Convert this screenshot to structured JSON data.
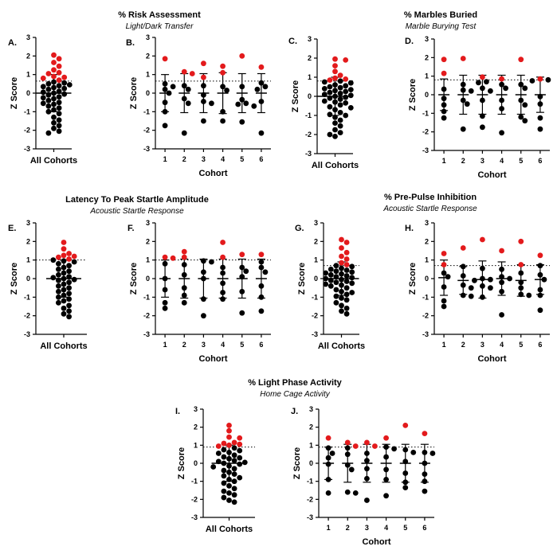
{
  "figure": {
    "sections": [
      {
        "id": "risk",
        "title": "% Risk Assessment",
        "subtitle": "Light/Dark Transfer"
      },
      {
        "id": "marbles",
        "title": "% Marbles Buried",
        "subtitle": "Marble Burying Test"
      },
      {
        "id": "latency",
        "title": "Latency To Peak Startle Amplitude",
        "subtitle": "Acoustic Startle Response"
      },
      {
        "id": "ppi",
        "title": "% Pre-Pulse Inhibition",
        "subtitle": "Acoustic Startle Response"
      },
      {
        "id": "light",
        "title": "% Light Phase Activity",
        "subtitle": "Home Cage Activity"
      }
    ],
    "colors": {
      "normal": "#000000",
      "highlight": "#e31a1c",
      "threshold_line": "#000000"
    }
  },
  "chart_data": [
    {
      "panel": "A.",
      "type": "scatter",
      "section": "risk",
      "ylabel": "Z Score",
      "xlabel": "All Cohorts",
      "ylim": [
        -3,
        3
      ],
      "yticks": [
        -3,
        -2,
        -1,
        0,
        1,
        2,
        3
      ],
      "mean": 0,
      "sd": 1,
      "threshold": 0.65,
      "points": [
        2.05,
        1.85,
        1.65,
        1.45,
        1.25,
        1.1,
        1.05,
        0.9,
        0.85,
        0.8,
        0.7,
        0.6,
        0.55,
        0.5,
        0.45,
        0.4,
        0.35,
        0.3,
        0.25,
        0.2,
        0.1,
        0.05,
        0,
        -0.05,
        -0.1,
        -0.2,
        -0.25,
        -0.3,
        -0.4,
        -0.5,
        -0.55,
        -0.6,
        -0.7,
        -0.8,
        -0.9,
        -1.0,
        -1.1,
        -1.3,
        -1.45,
        -1.6,
        -1.75,
        -1.9,
        -2.05,
        -2.15
      ]
    },
    {
      "panel": "B.",
      "type": "scatter",
      "section": "risk",
      "ylabel": "Z Score",
      "xlabel": "Cohort",
      "ylim": [
        -3,
        3
      ],
      "yticks": [
        -3,
        -2,
        -1,
        0,
        1,
        2,
        3
      ],
      "threshold": 0.65,
      "categories": [
        "1",
        "2",
        "3",
        "4",
        "5",
        "6"
      ],
      "groups": [
        {
          "mean": 0,
          "sd": 1,
          "points": [
            1.85,
            0.5,
            0.35,
            0.2,
            0,
            -0.5,
            -1.0,
            -1.75
          ]
        },
        {
          "mean": 0,
          "sd": 1.05,
          "points": [
            1.15,
            1.05,
            0.4,
            0.2,
            -0.3,
            -0.55,
            -2.15
          ]
        },
        {
          "mean": 0,
          "sd": 1.05,
          "points": [
            1.6,
            0.85,
            0.4,
            -0.1,
            -0.45,
            -0.55,
            -1.5
          ]
        },
        {
          "mean": 0,
          "sd": 1.1,
          "points": [
            1.45,
            1.1,
            0.35,
            0.15,
            -1.0,
            -1.5
          ]
        },
        {
          "mean": 0,
          "sd": 1.05,
          "points": [
            2.0,
            0.35,
            -0.35,
            -0.55,
            -0.6,
            -0.7,
            -1.55
          ]
        },
        {
          "mean": 0,
          "sd": 1.05,
          "points": [
            1.4,
            0.55,
            0.35,
            0.2,
            -0.45,
            -2.15
          ]
        }
      ]
    },
    {
      "panel": "C.",
      "type": "scatter",
      "section": "marbles",
      "ylabel": "Z Score",
      "xlabel": "All Cohorts",
      "ylim": [
        -3,
        3
      ],
      "yticks": [
        -3,
        -2,
        -1,
        0,
        1,
        2,
        3
      ],
      "mean": 0,
      "sd": 1,
      "threshold": 0.8,
      "points": [
        1.95,
        1.9,
        1.6,
        1.3,
        1.1,
        0.95,
        0.9,
        0.85,
        0.8,
        0.75,
        0.7,
        0.6,
        0.55,
        0.5,
        0.45,
        0.4,
        0.35,
        0.3,
        0.25,
        0.2,
        0.15,
        0.1,
        0.05,
        0,
        -0.05,
        -0.1,
        -0.15,
        -0.25,
        -0.3,
        -0.35,
        -0.45,
        -0.55,
        -0.6,
        -0.7,
        -0.85,
        -0.95,
        -1.0,
        -1.1,
        -1.25,
        -1.4,
        -1.55,
        -1.75,
        -1.9,
        -2.0,
        -2.1
      ]
    },
    {
      "panel": "D.",
      "type": "scatter",
      "section": "marbles",
      "ylabel": "Z Score",
      "xlabel": "Cohort",
      "ylim": [
        -3,
        3
      ],
      "yticks": [
        -3,
        -2,
        -1,
        0,
        1,
        2,
        3
      ],
      "threshold": 0.8,
      "categories": [
        "1",
        "2",
        "3",
        "4",
        "5",
        "6"
      ],
      "groups": [
        {
          "mean": 0,
          "sd": 0.85,
          "points": [
            1.9,
            1.15,
            0.3,
            -0.2,
            -0.55,
            -0.9,
            -1.25
          ]
        },
        {
          "mean": 0,
          "sd": 1.05,
          "points": [
            1.95,
            0.55,
            0.25,
            0.2,
            -0.3,
            -0.5,
            -1.85
          ]
        },
        {
          "mean": 0,
          "sd": 1.05,
          "points": [
            0.95,
            0.7,
            0.65,
            0.35,
            0.2,
            -0.3,
            -1.15,
            -1.75
          ]
        },
        {
          "mean": 0,
          "sd": 1.05,
          "points": [
            0.85,
            0.55,
            0.35,
            -0.3,
            -0.75,
            -2.05
          ]
        },
        {
          "mean": 0,
          "sd": 1.05,
          "points": [
            1.9,
            0.55,
            0.35,
            -0.3,
            -0.55,
            -1.2,
            -1.4
          ]
        },
        {
          "mean": 0,
          "sd": 0.95,
          "points": [
            0.85,
            0.8,
            0.75,
            -0.1,
            -0.5,
            -1.25,
            -1.85
          ]
        }
      ]
    },
    {
      "panel": "E.",
      "type": "scatter",
      "section": "latency",
      "ylabel": "Z Score",
      "xlabel": "All Cohorts",
      "ylim": [
        -3,
        3
      ],
      "yticks": [
        -3,
        -2,
        -1,
        0,
        1,
        2,
        3
      ],
      "mean": 0,
      "sd": 1,
      "threshold": 1.0,
      "points": [
        1.95,
        1.6,
        1.35,
        1.25,
        1.2,
        1.15,
        1.05,
        1.0,
        0.95,
        0.9,
        0.8,
        0.7,
        0.6,
        0.5,
        0.4,
        0.3,
        0.2,
        0.1,
        0.05,
        0,
        -0.05,
        -0.1,
        -0.2,
        -0.3,
        -0.4,
        -0.5,
        -0.6,
        -0.7,
        -0.8,
        -0.9,
        -1.0,
        -1.1,
        -1.2,
        -1.3,
        -1.45,
        -1.6,
        -1.75,
        -1.9,
        -2.05
      ]
    },
    {
      "panel": "F.",
      "type": "scatter",
      "section": "latency",
      "ylabel": "Z Score",
      "xlabel": "Cohort",
      "ylim": [
        -3,
        3
      ],
      "yticks": [
        -3,
        -2,
        -1,
        0,
        1,
        2,
        3
      ],
      "threshold": 1.0,
      "categories": [
        "1",
        "2",
        "3",
        "4",
        "5",
        "6"
      ],
      "groups": [
        {
          "mean": 0,
          "sd": 1,
          "points": [
            1.15,
            1.1,
            0.8,
            0,
            -0.6,
            -1.3,
            -1.6
          ]
        },
        {
          "mean": 0,
          "sd": 1.05,
          "points": [
            1.45,
            1.15,
            0.75,
            0.2,
            -0.5,
            -0.9,
            -1.3
          ]
        },
        {
          "mean": 0,
          "sd": 1.05,
          "points": [
            0.95,
            0.9,
            0.35,
            0,
            -1.1,
            -2.0
          ]
        },
        {
          "mean": 0,
          "sd": 1.05,
          "points": [
            1.95,
            1.15,
            0.6,
            0.3,
            -0.25,
            -0.75,
            -1.1
          ]
        },
        {
          "mean": 0,
          "sd": 1.05,
          "points": [
            1.3,
            0.6,
            0.4,
            0.1,
            -0.7,
            -1.85
          ]
        },
        {
          "mean": 0,
          "sd": 1.05,
          "points": [
            1.3,
            0.9,
            0.6,
            0.35,
            -0.4,
            -1.0,
            -1.75
          ]
        }
      ]
    },
    {
      "panel": "G.",
      "type": "scatter",
      "section": "ppi",
      "ylabel": "Z Score",
      "xlabel": "All Cohorts",
      "ylim": [
        -3,
        3
      ],
      "yticks": [
        -3,
        -2,
        -1,
        0,
        1,
        2,
        3
      ],
      "mean": 0,
      "sd": 0.9,
      "threshold": 0.7,
      "points": [
        2.1,
        1.95,
        1.65,
        1.4,
        1.2,
        1.05,
        0.85,
        0.75,
        0.7,
        0.65,
        0.55,
        0.5,
        0.45,
        0.4,
        0.35,
        0.3,
        0.25,
        0.2,
        0.15,
        0.1,
        0.05,
        0,
        -0.05,
        -0.1,
        -0.15,
        -0.2,
        -0.25,
        -0.3,
        -0.35,
        -0.4,
        -0.5,
        -0.6,
        -0.7,
        -0.75,
        -0.85,
        -0.95,
        -1.05,
        -1.15,
        -1.3,
        -1.45,
        -1.6,
        -1.75,
        -1.9
      ]
    },
    {
      "panel": "H.",
      "type": "scatter",
      "section": "ppi",
      "ylabel": "Z Score",
      "xlabel": "Cohort",
      "ylim": [
        -3,
        3
      ],
      "yticks": [
        -3,
        -2,
        -1,
        0,
        1,
        2,
        3
      ],
      "threshold": 0.7,
      "categories": [
        "1",
        "2",
        "3",
        "4",
        "5",
        "6"
      ],
      "groups": [
        {
          "mean": 0.05,
          "sd": 0.95,
          "points": [
            1.35,
            0.75,
            0.3,
            0.1,
            -0.45,
            -1.2,
            -1.5
          ]
        },
        {
          "mean": -0.1,
          "sd": 0.75,
          "points": [
            1.65,
            0.65,
            0.15,
            -0.35,
            -0.5,
            -0.9,
            -0.95
          ]
        },
        {
          "mean": -0.05,
          "sd": 1.0,
          "points": [
            2.1,
            0.55,
            0,
            -0.05,
            -0.1,
            -0.4,
            -0.5,
            -1.0
          ]
        },
        {
          "mean": 0,
          "sd": 0.9,
          "points": [
            1.5,
            0.5,
            0.1,
            0,
            -0.2,
            -0.7,
            -1.95
          ]
        },
        {
          "mean": -0.1,
          "sd": 0.85,
          "points": [
            2.0,
            0.75,
            0.3,
            -0.2,
            -0.5,
            -0.85,
            -0.9
          ]
        },
        {
          "mean": -0.05,
          "sd": 0.8,
          "points": [
            1.25,
            0.7,
            0.2,
            -0.05,
            -0.6,
            -0.9,
            -1.7
          ]
        }
      ]
    },
    {
      "panel": "I.",
      "type": "scatter",
      "section": "light",
      "ylabel": "Z Score",
      "xlabel": "All Cohorts",
      "ylim": [
        -3,
        3
      ],
      "yticks": [
        -3,
        -2,
        -1,
        0,
        1,
        2,
        3
      ],
      "mean": 0,
      "sd": 1,
      "threshold": 0.9,
      "points": [
        2.1,
        1.8,
        1.45,
        1.4,
        1.15,
        1.1,
        1.05,
        1.0,
        0.95,
        0.85,
        0.75,
        0.7,
        0.6,
        0.55,
        0.45,
        0.35,
        0.3,
        0.25,
        0.15,
        0.1,
        0.05,
        0,
        -0.05,
        -0.15,
        -0.2,
        -0.3,
        -0.4,
        -0.5,
        -0.6,
        -0.7,
        -0.8,
        -0.9,
        -1.0,
        -1.1,
        -1.25,
        -1.4,
        -1.55,
        -1.65,
        -1.75,
        -1.9,
        -2.05,
        -2.15
      ]
    },
    {
      "panel": "J.",
      "type": "scatter",
      "section": "light",
      "ylabel": "Z Score",
      "xlabel": "Cohort",
      "ylim": [
        -3,
        3
      ],
      "yticks": [
        -3,
        -2,
        -1,
        0,
        1,
        2,
        3
      ],
      "threshold": 0.9,
      "categories": [
        "1",
        "2",
        "3",
        "4",
        "5",
        "6"
      ],
      "groups": [
        {
          "mean": 0,
          "sd": 0.9,
          "points": [
            1.4,
            0.85,
            0.55,
            0.3,
            -0.05,
            -0.9,
            -1.65
          ]
        },
        {
          "mean": 0,
          "sd": 1.05,
          "points": [
            1.15,
            0.95,
            0.85,
            0.5,
            -0.1,
            -0.35,
            -1.6,
            -1.65
          ]
        },
        {
          "mean": 0,
          "sd": 1.05,
          "points": [
            1.15,
            0.95,
            0.55,
            0.15,
            -0.3,
            -0.85,
            -2.05
          ]
        },
        {
          "mean": 0,
          "sd": 1.05,
          "points": [
            1.4,
            0.9,
            0.8,
            0.35,
            -0.35,
            -0.9,
            -1.8
          ]
        },
        {
          "mean": 0,
          "sd": 1.05,
          "points": [
            2.1,
            0.75,
            0.6,
            0.1,
            -0.55,
            -1.05,
            -1.35
          ]
        },
        {
          "mean": 0,
          "sd": 1.05,
          "points": [
            1.65,
            0.6,
            0.55,
            0,
            -0.6,
            -1.0,
            -1.55
          ]
        }
      ]
    }
  ]
}
